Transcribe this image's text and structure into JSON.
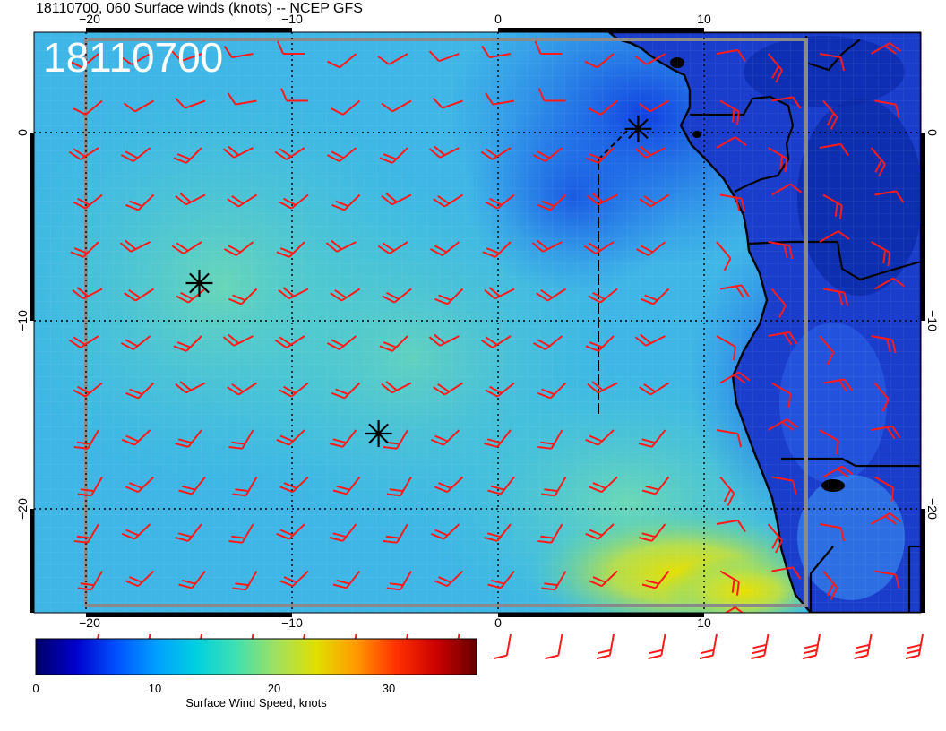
{
  "title": "18110700, 060 Surface winds (knots) -- NCEP GFS",
  "stamp": "18110700",
  "lon_ticks": [
    "−20",
    "−10",
    "0",
    "10"
  ],
  "lat_ticks": [
    "0",
    "−10",
    "−20"
  ],
  "colorbar": {
    "label": "Surface Wind Speed, knots",
    "tick_labels": [
      "0",
      "10",
      "20",
      "30"
    ],
    "range": [
      0,
      37
    ],
    "colors": [
      "#000066",
      "#0000cc",
      "#0050ff",
      "#00a0ff",
      "#00d0e0",
      "#40e0b0",
      "#a0e060",
      "#e0e000",
      "#ff9900",
      "#ff3000",
      "#cc0000",
      "#660000"
    ]
  },
  "map": {
    "lon_range": [
      -22.5,
      21
    ],
    "lat_range": [
      -25.5,
      5
    ],
    "grid_lon": [
      -20,
      -10,
      0,
      10
    ],
    "grid_lat": [
      0,
      -10,
      -20
    ],
    "barb_color": "#ff1a1a",
    "stars": [
      {
        "lon": -14.5,
        "lat": -8
      },
      {
        "lon": -5.8,
        "lat": -16
      },
      {
        "lon": 6.8,
        "lat": 0.2
      }
    ]
  }
}
